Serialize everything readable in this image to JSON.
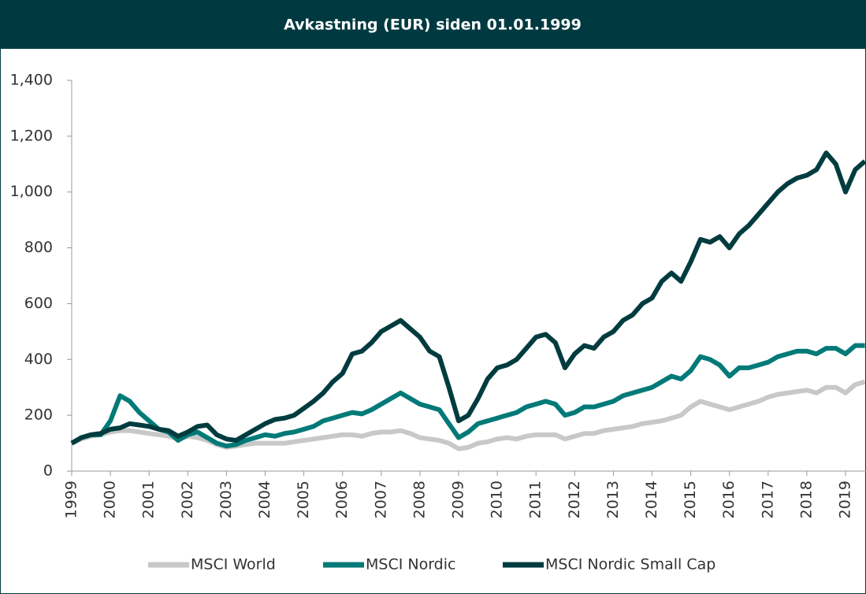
{
  "chart_data": {
    "type": "line",
    "title": "Avkastning (EUR) siden 01.01.1999",
    "x": [
      1999,
      1999.25,
      1999.5,
      1999.75,
      2000,
      2000.25,
      2000.5,
      2000.75,
      2001,
      2001.25,
      2001.5,
      2001.75,
      2002,
      2002.25,
      2002.5,
      2002.75,
      2003,
      2003.25,
      2003.5,
      2003.75,
      2004,
      2004.25,
      2004.5,
      2004.75,
      2005,
      2005.25,
      2005.5,
      2005.75,
      2006,
      2006.25,
      2006.5,
      2006.75,
      2007,
      2007.25,
      2007.5,
      2007.75,
      2008,
      2008.25,
      2008.5,
      2008.75,
      2009,
      2009.25,
      2009.5,
      2009.75,
      2010,
      2010.25,
      2010.5,
      2010.75,
      2011,
      2011.25,
      2011.5,
      2011.75,
      2012,
      2012.25,
      2012.5,
      2012.75,
      2013,
      2013.25,
      2013.5,
      2013.75,
      2014,
      2014.25,
      2014.5,
      2014.75,
      2015,
      2015.25,
      2015.5,
      2015.75,
      2016,
      2016.25,
      2016.5,
      2016.75,
      2017,
      2017.25,
      2017.5,
      2017.75,
      2018,
      2018.25,
      2018.5,
      2018.75,
      2019,
      2019.25,
      2019.5
    ],
    "series": [
      {
        "name": "MSCI World",
        "color": "#c8c8c8",
        "values": [
          100,
          115,
          125,
          130,
          140,
          145,
          145,
          140,
          135,
          130,
          125,
          115,
          125,
          120,
          110,
          95,
          85,
          90,
          95,
          100,
          100,
          100,
          100,
          105,
          110,
          115,
          120,
          125,
          130,
          130,
          125,
          135,
          140,
          140,
          145,
          135,
          120,
          115,
          110,
          100,
          80,
          85,
          100,
          105,
          115,
          120,
          115,
          125,
          130,
          130,
          130,
          115,
          125,
          135,
          135,
          145,
          150,
          155,
          160,
          170,
          175,
          180,
          190,
          200,
          230,
          250,
          240,
          230,
          220,
          230,
          240,
          250,
          265,
          275,
          280,
          285,
          290,
          280,
          300,
          300,
          280,
          310,
          320
        ]
      },
      {
        "name": "MSCI Nordic",
        "color": "#007a78",
        "values": [
          100,
          120,
          130,
          130,
          180,
          270,
          250,
          210,
          180,
          150,
          140,
          110,
          130,
          140,
          120,
          100,
          90,
          95,
          110,
          120,
          130,
          125,
          135,
          140,
          150,
          160,
          180,
          190,
          200,
          210,
          205,
          220,
          240,
          260,
          280,
          260,
          240,
          230,
          220,
          170,
          120,
          140,
          170,
          180,
          190,
          200,
          210,
          230,
          240,
          250,
          240,
          200,
          210,
          230,
          230,
          240,
          250,
          270,
          280,
          290,
          300,
          320,
          340,
          330,
          360,
          410,
          400,
          380,
          340,
          370,
          370,
          380,
          390,
          410,
          420,
          430,
          430,
          420,
          440,
          440,
          420,
          450,
          450
        ]
      },
      {
        "name": "MSCI Nordic Small Cap",
        "color": "#003c3f",
        "values": [
          100,
          120,
          130,
          135,
          150,
          155,
          170,
          165,
          160,
          150,
          145,
          125,
          140,
          160,
          165,
          130,
          115,
          110,
          130,
          150,
          170,
          185,
          190,
          200,
          225,
          250,
          280,
          320,
          350,
          420,
          430,
          460,
          500,
          520,
          540,
          510,
          480,
          430,
          410,
          300,
          180,
          200,
          260,
          330,
          370,
          380,
          400,
          440,
          480,
          490,
          460,
          370,
          420,
          450,
          440,
          480,
          500,
          540,
          560,
          600,
          620,
          680,
          710,
          680,
          750,
          830,
          820,
          840,
          800,
          850,
          880,
          920,
          960,
          1000,
          1030,
          1050,
          1060,
          1080,
          1140,
          1100,
          1000,
          1080,
          1110
        ]
      }
    ],
    "xlim": [
      1999,
      2019.55
    ],
    "xticks": [
      1999,
      2000,
      2001,
      2002,
      2003,
      2004,
      2005,
      2006,
      2007,
      2008,
      2009,
      2010,
      2011,
      2012,
      2013,
      2014,
      2015,
      2016,
      2017,
      2018,
      2019
    ],
    "ylim": [
      0,
      1400
    ],
    "yticks": [
      0,
      200,
      400,
      600,
      800,
      {
        "value": 1000,
        "label": "1,000"
      },
      {
        "value": 1200,
        "label": "1,200"
      },
      {
        "value": 1400,
        "label": "1,400"
      }
    ],
    "legend": "bottom",
    "grid": false
  }
}
